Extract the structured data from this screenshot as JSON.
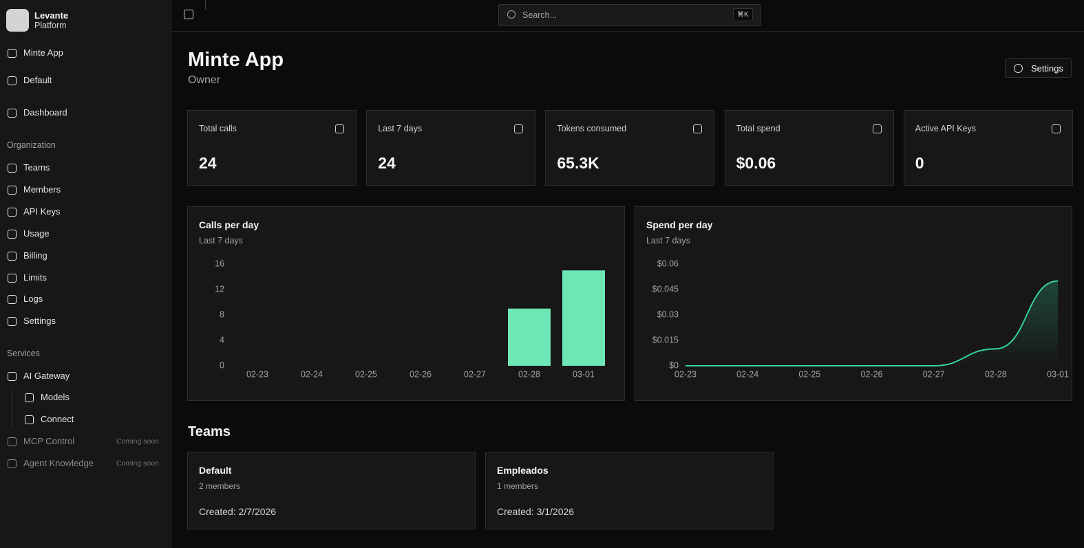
{
  "brand": {
    "name": "Levante",
    "subtitle": "Platform"
  },
  "selectors": [
    "Minte App",
    "Default"
  ],
  "nav": {
    "main": [
      "Dashboard"
    ],
    "organization": {
      "title": "Organization",
      "items": [
        "Teams",
        "Members",
        "API Keys",
        "Usage",
        "Billing",
        "Limits",
        "Logs",
        "Settings"
      ]
    },
    "services": {
      "title": "Services",
      "gateway": "AI Gateway",
      "gateway_items": [
        "Models",
        "Connect"
      ],
      "soon": [
        {
          "label": "MCP Control",
          "badge": "Coming soon"
        },
        {
          "label": "Agent Knowledge",
          "badge": "Coming soon"
        }
      ]
    }
  },
  "search": {
    "placeholder": "Search...",
    "shortcut": "⌘K"
  },
  "page": {
    "title": "Minte App",
    "role": "Owner",
    "settings_button": "Settings"
  },
  "stats": [
    {
      "label": "Total calls",
      "value": "24"
    },
    {
      "label": "Last 7 days",
      "value": "24"
    },
    {
      "label": "Tokens consumed",
      "value": "65.3K"
    },
    {
      "label": "Total spend",
      "value": "$0.06"
    },
    {
      "label": "Active API Keys",
      "value": "0"
    }
  ],
  "chart_data": [
    {
      "type": "bar",
      "title": "Calls per day",
      "subtitle": "Last 7 days",
      "categories": [
        "02-23",
        "02-24",
        "02-25",
        "02-26",
        "02-27",
        "02-28",
        "03-01"
      ],
      "values": [
        0,
        0,
        0,
        0,
        0,
        9,
        15
      ],
      "color": "#6ee7b7",
      "ylim": [
        0,
        16
      ],
      "yticks": [
        0,
        4,
        8,
        12,
        16
      ]
    },
    {
      "type": "line",
      "title": "Spend per day",
      "subtitle": "Last 7 days",
      "categories": [
        "02-23",
        "02-24",
        "02-25",
        "02-26",
        "02-27",
        "02-28",
        "03-01"
      ],
      "values": [
        0,
        0,
        0,
        0,
        0,
        0.01,
        0.05
      ],
      "color": "#34d399",
      "ylim": [
        0,
        0.06
      ],
      "yticks": [
        {
          "value": 0,
          "label": "$0"
        },
        {
          "value": 0.015,
          "label": "$0.015"
        },
        {
          "value": 0.03,
          "label": "$0.03"
        },
        {
          "value": 0.045,
          "label": "$0.045"
        },
        {
          "value": 0.06,
          "label": "$0.06"
        }
      ]
    }
  ],
  "teams": {
    "title": "Teams",
    "cards": [
      {
        "name": "Default",
        "members": "2 members",
        "created": "Created: 2/7/2026"
      },
      {
        "name": "Empleados",
        "members": "1 members",
        "created": "Created: 3/1/2026"
      }
    ]
  }
}
